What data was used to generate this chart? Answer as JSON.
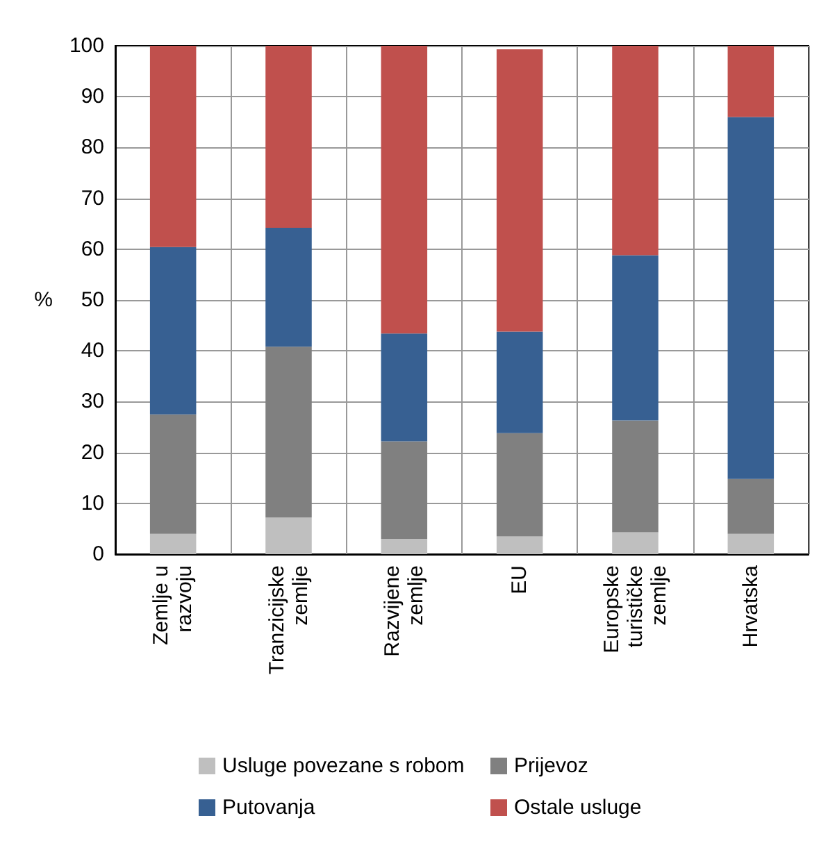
{
  "chart_data": {
    "type": "bar",
    "stacked": true,
    "ylabel": "%",
    "categories": [
      "Zemlje u\nrazvoju",
      "Tranzicijske\nzemlje",
      "Razvijene\nzemlje",
      "EU",
      "Europske\nturističke\nzemlje",
      "Hrvatska"
    ],
    "series": [
      {
        "name": "Usluge povezane s robom",
        "color": "#bfbfbf",
        "values": [
          4,
          7.2,
          3,
          3.5,
          4.3,
          4
        ]
      },
      {
        "name": "Prijevoz",
        "color": "#808080",
        "values": [
          23.5,
          33.6,
          19.2,
          20.3,
          22,
          10.8
        ]
      },
      {
        "name": "Putovanja",
        "color": "#376092",
        "values": [
          32.9,
          23.4,
          21.2,
          20,
          32.5,
          71.2
        ]
      },
      {
        "name": "Ostale usluge",
        "color": "#c0504d",
        "values": [
          39.6,
          35.8,
          56.6,
          55.5,
          41.2,
          14
        ]
      }
    ],
    "ylim": [
      0,
      100
    ],
    "yticks": [
      0,
      10,
      20,
      30,
      40,
      50,
      60,
      70,
      80,
      90,
      100
    ],
    "grid": true,
    "legend": "bottom"
  }
}
